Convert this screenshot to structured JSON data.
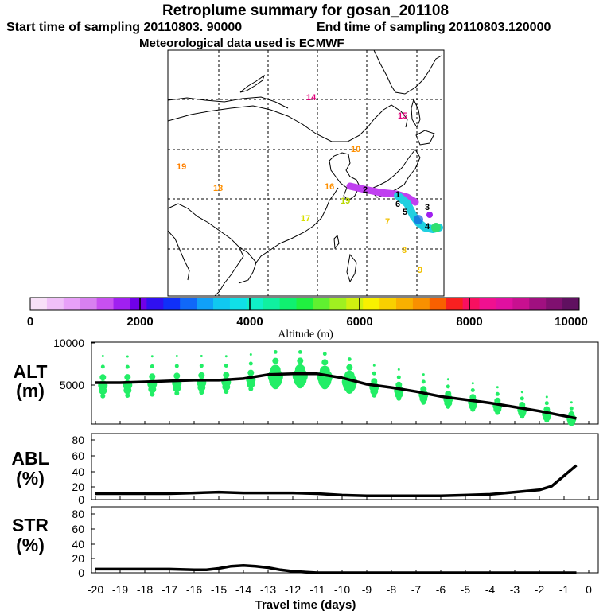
{
  "header": {
    "title": "Retroplume summary for gosan_201108",
    "start_sampling": "Start time of sampling 20110803. 90000",
    "end_sampling": "End time of sampling 20110803.120000",
    "meteo": "Meteorological data used is ECMWF"
  },
  "map": {
    "day_labels": [
      {
        "text": "14",
        "color": "#e0007a"
      },
      {
        "text": "15",
        "color": "#e0007a"
      },
      {
        "text": "19",
        "color": "#ff8000"
      },
      {
        "text": "18",
        "color": "#ff9000"
      },
      {
        "text": "10",
        "color": "#ff9000"
      },
      {
        "text": "16",
        "color": "#ff9000"
      },
      {
        "text": "19",
        "color": "#b8d800"
      },
      {
        "text": "17",
        "color": "#d8e000"
      },
      {
        "text": "7",
        "color": "#f0c000"
      },
      {
        "text": "8",
        "color": "#f0c000"
      },
      {
        "text": "9",
        "color": "#f0c000"
      },
      {
        "text": "1",
        "color": "#000000"
      },
      {
        "text": "2",
        "color": "#000000"
      },
      {
        "text": "3",
        "color": "#000000"
      },
      {
        "text": "4",
        "color": "#000000"
      },
      {
        "text": "5",
        "color": "#000000"
      },
      {
        "text": "6",
        "color": "#000000"
      }
    ]
  },
  "colorbar": {
    "ticks": [
      "0",
      "2000",
      "4000",
      "6000",
      "8000",
      "10000"
    ],
    "label": "Altitude (m)",
    "colors": [
      "#f8e0f8",
      "#f0c0f8",
      "#e8a0f8",
      "#d880f0",
      "#c850f0",
      "#a020f0",
      "#7000e8",
      "#3010f0",
      "#1030f8",
      "#1068f8",
      "#10a0f8",
      "#10c8f0",
      "#10e0e8",
      "#10f0c8",
      "#10f0a0",
      "#10f070",
      "#20f040",
      "#60f030",
      "#a0f020",
      "#d0f010",
      "#f8f000",
      "#f8d000",
      "#f8b000",
      "#f89000",
      "#f86000",
      "#f82020",
      "#f81060",
      "#f01090",
      "#e010a0",
      "#c81090",
      "#a01080",
      "#801070",
      "#601060"
    ]
  },
  "chart_data": [
    {
      "type": "line",
      "name": "ALT",
      "ylabel": "ALT (m)",
      "ylim": [
        0,
        10000
      ],
      "yticks": [
        "10000",
        "5000"
      ],
      "x": [
        -20,
        -19,
        -18,
        -17,
        -16,
        -15,
        -14,
        -13,
        -12,
        -11,
        -10,
        -9,
        -8,
        -7,
        -6,
        -5,
        -4,
        -3,
        -2,
        -1,
        -0.5
      ],
      "values": [
        5100,
        5100,
        5200,
        5300,
        5400,
        5400,
        5600,
        6100,
        6200,
        6200,
        5700,
        4900,
        4500,
        4000,
        3400,
        3000,
        2600,
        2100,
        1600,
        1000,
        700
      ]
    },
    {
      "type": "line",
      "name": "ABL",
      "ylabel": "ABL (%)",
      "ylim": [
        0,
        90
      ],
      "yticks": [
        "80",
        "60",
        "40",
        "20",
        "0"
      ],
      "x": [
        -20,
        -19,
        -18,
        -17,
        -16,
        -15,
        -14,
        -13,
        -12,
        -11,
        -10,
        -9,
        -8,
        -7,
        -6,
        -5,
        -4,
        -3,
        -2,
        -1.5,
        -0.5
      ],
      "values": [
        8,
        8,
        8,
        8,
        9,
        10,
        9,
        9,
        9,
        8,
        6,
        5,
        5,
        5,
        5,
        6,
        7,
        10,
        13,
        18,
        46
      ]
    },
    {
      "type": "line",
      "name": "STR",
      "ylabel": "STR (%)",
      "ylim": [
        0,
        90
      ],
      "yticks": [
        "80",
        "60",
        "40",
        "20",
        "0"
      ],
      "x": [
        -20,
        -19,
        -18,
        -17,
        -16,
        -15.5,
        -15,
        -14.5,
        -14,
        -13.5,
        -13,
        -12.5,
        -12,
        -11.5,
        -11,
        -10,
        -5,
        -0.5
      ],
      "values": [
        5,
        5,
        5,
        5,
        4,
        4,
        6,
        9,
        10,
        9,
        7,
        4,
        2,
        1,
        0,
        0,
        0,
        0
      ]
    }
  ],
  "xaxis": {
    "ticks": [
      "-20",
      "-19",
      "-18",
      "-17",
      "-16",
      "-15",
      "-14",
      "-13",
      "-12",
      "-11",
      "-10",
      "-9",
      "-8",
      "-7",
      "-6",
      "-5",
      "-4",
      "-3",
      "-2",
      "-1",
      "0"
    ],
    "label": "Travel time (days)"
  },
  "panel_labels": {
    "alt_top": "ALT",
    "alt_bottom": "(m)",
    "abl_top": "ABL",
    "abl_bottom": "(%)",
    "str_top": "STR",
    "str_bottom": "(%)"
  }
}
